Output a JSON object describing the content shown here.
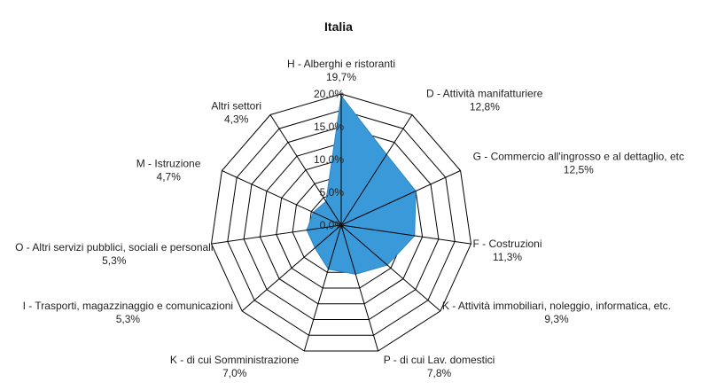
{
  "chart_data": {
    "type": "radar",
    "title": "Italia",
    "categories": [
      "H - Alberghi e ristoranti",
      "D - Attività  manifatturiere",
      "G - Commercio all'ingrosso e al dettaglio, etc",
      "F - Costruzioni",
      "K - Attività  immobiliari, noleggio, informatica,  etc.",
      "P - di cui Lav. domestici",
      "K - di cui Somministrazione",
      "I - Trasporti, magazzinaggio e comunicazioni",
      "O - Altri servizi pubblici, sociali e personali",
      "M - Istruzione",
      "Altri settori"
    ],
    "value_labels": [
      "19,7%",
      "12,8%",
      "12,5%",
      "11,3%",
      "9,3%",
      "7,8%",
      "7,0%",
      "5,3%",
      "5,3%",
      "4,7%",
      "4,3%"
    ],
    "values": [
      19.7,
      12.8,
      12.5,
      11.3,
      9.3,
      7.8,
      7.0,
      5.3,
      5.3,
      4.7,
      4.3
    ],
    "r_ticks": [
      0,
      5,
      10,
      15,
      20
    ],
    "r_tick_labels": [
      "0,0%",
      "5,0%",
      "10,0%",
      "15,0%",
      "20,0%"
    ],
    "rlim": [
      0,
      20
    ],
    "grid": true,
    "legend": "none",
    "fill_color": "#3a9ad9",
    "stroke_color": "#2f86c2",
    "grid_color": "#000000"
  }
}
